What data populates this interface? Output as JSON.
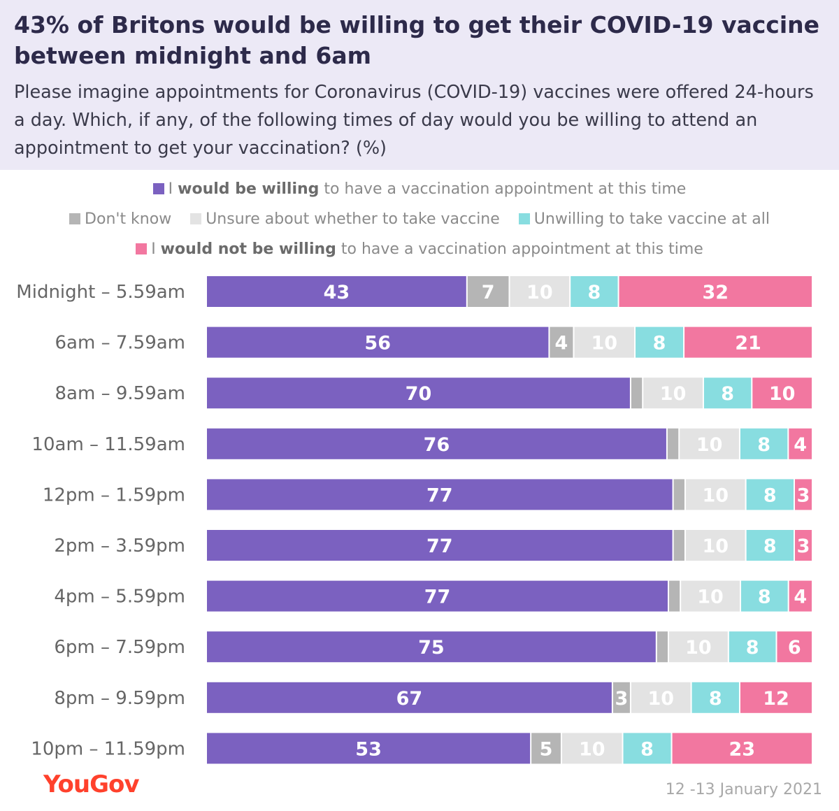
{
  "header": {
    "title": "43% of Britons would be willing to get their COVID-19 vaccine between midnight and 6am",
    "subtitle": "Please imagine appointments for Coronavirus (COVID-19) vaccines were offered 24-hours a day. Which, if any, of the following times of day would you be willing to attend an appointment to get your vaccination? (%)"
  },
  "legend": {
    "willing": {
      "pre": "I ",
      "bold": "would be willing",
      "post": " to have a vaccination appointment at this time"
    },
    "dont_know": "Don't know",
    "unsure": "Unsure about whether to take vaccine",
    "unwilling_all": "Unwilling to take vaccine at all",
    "not_willing": {
      "pre": "I ",
      "bold": "would not be willing",
      "post": " to have a vaccination appointment at this time"
    }
  },
  "colors": {
    "willing": "#7b61c0",
    "dont_know": "#b5b5b5",
    "unsure": "#e3e3e3",
    "unwilling_all": "#88dde0",
    "not_willing": "#f277a0"
  },
  "footer": {
    "brand": "YouGov",
    "date": "12 -13 January 2021"
  },
  "chart_data": {
    "type": "bar",
    "orientation": "horizontal",
    "stacked": true,
    "xlim": [
      0,
      100
    ],
    "categories": [
      "Midnight – 5.59am",
      "6am – 7.59am",
      "8am – 9.59am",
      "10am – 11.59am",
      "12pm – 1.59pm",
      "2pm – 3.59pm",
      "4pm – 5.59pm",
      "6pm – 7.59pm",
      "8pm – 9.59pm",
      "10pm – 11.59pm"
    ],
    "series": [
      {
        "name": "I would be willing to have a vaccination appointment at this time",
        "key": "willing",
        "values": [
          43,
          56,
          70,
          76,
          77,
          77,
          77,
          75,
          67,
          53
        ]
      },
      {
        "name": "Don't know",
        "key": "dont_know",
        "values": [
          7,
          4,
          2,
          2,
          2,
          2,
          2,
          2,
          3,
          5
        ]
      },
      {
        "name": "Unsure about whether to take vaccine",
        "key": "unsure",
        "values": [
          10,
          10,
          10,
          10,
          10,
          10,
          10,
          10,
          10,
          10
        ]
      },
      {
        "name": "Unwilling to take vaccine at all",
        "key": "unwilling_all",
        "values": [
          8,
          8,
          8,
          8,
          8,
          8,
          8,
          8,
          8,
          8
        ]
      },
      {
        "name": "I would not be willing to have a vaccination appointment at this time",
        "key": "not_willing",
        "values": [
          32,
          21,
          10,
          4,
          3,
          3,
          4,
          6,
          12,
          23
        ]
      }
    ],
    "data_labels": [
      [
        "43",
        "7",
        "10",
        "8",
        "32"
      ],
      [
        "56",
        "4",
        "10",
        "8",
        "21"
      ],
      [
        "70",
        "",
        "10",
        "8",
        "10"
      ],
      [
        "76",
        "",
        "10",
        "8",
        "4"
      ],
      [
        "77",
        "",
        "10",
        "8",
        "3"
      ],
      [
        "77",
        "",
        "10",
        "8",
        "3"
      ],
      [
        "77",
        "",
        "10",
        "8",
        "4"
      ],
      [
        "75",
        "",
        "10",
        "8",
        "6"
      ],
      [
        "67",
        "3",
        "10",
        "8",
        "12"
      ],
      [
        "53",
        "5",
        "10",
        "8",
        "23"
      ]
    ]
  }
}
